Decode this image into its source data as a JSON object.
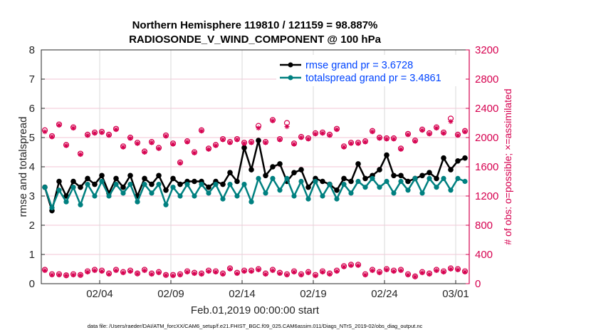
{
  "chart_data": {
    "type": "line",
    "title": [
      "Northern Hemisphere 119810 / 121159 = 98.887%",
      "RADIOSONDE_V_WIND_COMPONENT @ 100 hPa"
    ],
    "xlabel": "Feb.01,2019 00:00:00 start",
    "ylabel": "rmse and totalspread",
    "ylabel_right": "# of obs: o=possible; ×=assimilated",
    "xlim_days_since_feb01": [
      -1.1,
      28.95
    ],
    "x_ticks": [
      {
        "day": 3,
        "label": "02/04"
      },
      {
        "day": 8,
        "label": "02/09"
      },
      {
        "day": 13,
        "label": "02/14"
      },
      {
        "day": 18,
        "label": "02/19"
      },
      {
        "day": 23,
        "label": "02/24"
      },
      {
        "day": 28,
        "label": "03/01"
      }
    ],
    "ylim": [
      0,
      8
    ],
    "y_ticks": [
      "0",
      "1",
      "2",
      "3",
      "4",
      "5",
      "6",
      "7",
      "8"
    ],
    "ylim_right": [
      0,
      3200
    ],
    "y_ticks_right": [
      "0",
      "400",
      "800",
      "1200",
      "1600",
      "2000",
      "2400",
      "2800",
      "3200"
    ],
    "grid": true,
    "legend_position": "top-right",
    "x_start_day": -0.85,
    "x_step_days": 0.5,
    "series": [
      {
        "name": "rmse grand pr = 3.6728",
        "color": "#000000",
        "axis": "left",
        "marker": "asterisk-dot",
        "values": [
          3.3,
          2.5,
          3.5,
          3.0,
          3.5,
          3.3,
          3.6,
          3.4,
          3.7,
          3.1,
          3.6,
          3.3,
          3.7,
          3.0,
          3.6,
          3.4,
          3.7,
          3.2,
          3.6,
          3.4,
          3.5,
          3.5,
          3.5,
          3.3,
          3.5,
          3.4,
          3.8,
          3.5,
          4.65,
          3.9,
          4.9,
          3.7,
          4.0,
          4.1,
          3.5,
          3.8,
          3.9,
          3.3,
          3.6,
          3.5,
          3.4,
          3.2,
          3.6,
          3.5,
          4.1,
          3.6,
          3.7,
          3.9,
          4.4,
          3.7,
          3.7,
          3.5,
          3.6,
          3.7,
          3.8,
          3.6,
          4.3,
          3.9,
          4.2,
          4.3
        ]
      },
      {
        "name": "totalspread grand pr = 3.4861",
        "color": "#008080",
        "axis": "left",
        "marker": "dot",
        "values": [
          3.3,
          2.6,
          3.2,
          2.8,
          3.3,
          2.7,
          3.4,
          3.0,
          3.5,
          3.0,
          3.4,
          3.1,
          3.4,
          2.8,
          3.4,
          3.1,
          3.4,
          2.7,
          3.3,
          3.0,
          3.4,
          3.0,
          3.4,
          3.1,
          3.4,
          2.9,
          3.4,
          3.0,
          3.4,
          2.8,
          3.6,
          3.1,
          3.6,
          3.2,
          3.6,
          3.0,
          3.5,
          2.9,
          3.5,
          3.0,
          3.4,
          2.9,
          3.4,
          3.1,
          3.5,
          3.3,
          3.6,
          3.3,
          3.5,
          3.1,
          3.5,
          3.2,
          3.6,
          3.1,
          3.6,
          3.3,
          3.6,
          3.2,
          3.6,
          3.5
        ]
      },
      {
        "name": "obs possible",
        "color": "#d6004f",
        "axis": "right",
        "marker": "circle",
        "values": [
          2100,
          2020,
          2180,
          1900,
          2140,
          1780,
          2040,
          2070,
          2080,
          2040,
          2120,
          1880,
          2000,
          1930,
          1810,
          1940,
          1860,
          2030,
          1920,
          1660,
          1950,
          1800,
          2100,
          1850,
          1900,
          1980,
          1940,
          1980,
          1930,
          1940,
          2160,
          1940,
          2240,
          1980,
          2200,
          1920,
          2010,
          1990,
          2060,
          2070,
          2040,
          2120,
          1880,
          1930,
          1930,
          1950,
          2090,
          2000,
          1990,
          1990,
          1850,
          2050,
          1960,
          2110,
          2060,
          2140,
          2070,
          2260,
          2040,
          2090
        ]
      },
      {
        "name": "obs assimilated",
        "color": "#d6004f",
        "axis": "right",
        "marker": "asterisk",
        "values": [
          2080,
          2010,
          2170,
          1890,
          2130,
          1770,
          2030,
          2060,
          2070,
          2030,
          2110,
          1870,
          1990,
          1920,
          1800,
          1930,
          1850,
          2020,
          1910,
          1650,
          1940,
          1790,
          2090,
          1840,
          1890,
          1970,
          1930,
          1970,
          1920,
          1930,
          2130,
          1930,
          2230,
          1970,
          2150,
          1910,
          2000,
          1980,
          2050,
          2060,
          2030,
          2110,
          1870,
          1920,
          1920,
          1940,
          2080,
          1990,
          1980,
          1980,
          1840,
          2040,
          1950,
          2100,
          2050,
          2130,
          2060,
          2220,
          2030,
          2080
        ]
      },
      {
        "name": "obs possible (low)",
        "color": "#d6004f",
        "axis": "right",
        "marker": "circle",
        "values": [
          190,
          130,
          130,
          115,
          130,
          120,
          170,
          190,
          180,
          140,
          190,
          160,
          180,
          140,
          190,
          140,
          160,
          120,
          120,
          130,
          170,
          150,
          140,
          180,
          170,
          140,
          210,
          150,
          180,
          180,
          200,
          140,
          190,
          150,
          130,
          170,
          130,
          160,
          120,
          170,
          140,
          180,
          240,
          260,
          260,
          130,
          190,
          160,
          200,
          180,
          190,
          130,
          100,
          160,
          140,
          190,
          170,
          210,
          200,
          170
        ]
      },
      {
        "name": "obs assimilated (low)",
        "color": "#d6004f",
        "axis": "right",
        "marker": "asterisk",
        "values": [
          180,
          120,
          120,
          110,
          120,
          115,
          160,
          180,
          170,
          130,
          180,
          150,
          170,
          135,
          180,
          130,
          150,
          115,
          110,
          120,
          160,
          140,
          130,
          170,
          160,
          130,
          200,
          140,
          170,
          170,
          190,
          130,
          180,
          140,
          120,
          160,
          120,
          150,
          110,
          160,
          130,
          170,
          230,
          250,
          250,
          120,
          180,
          150,
          190,
          170,
          180,
          120,
          95,
          150,
          130,
          180,
          160,
          200,
          190,
          160
        ]
      }
    ],
    "legend": [
      "rmse grand pr = 3.6728",
      "totalspread grand pr = 3.4861"
    ]
  },
  "footer": "data file: /Users/raeder/DAI/ATM_forcXX/CAM6_setup/f.e21.FHIST_BGC.f09_025.CAM6assim.011/Diags_NTrS_2019-02/obs_diag_output.nc"
}
